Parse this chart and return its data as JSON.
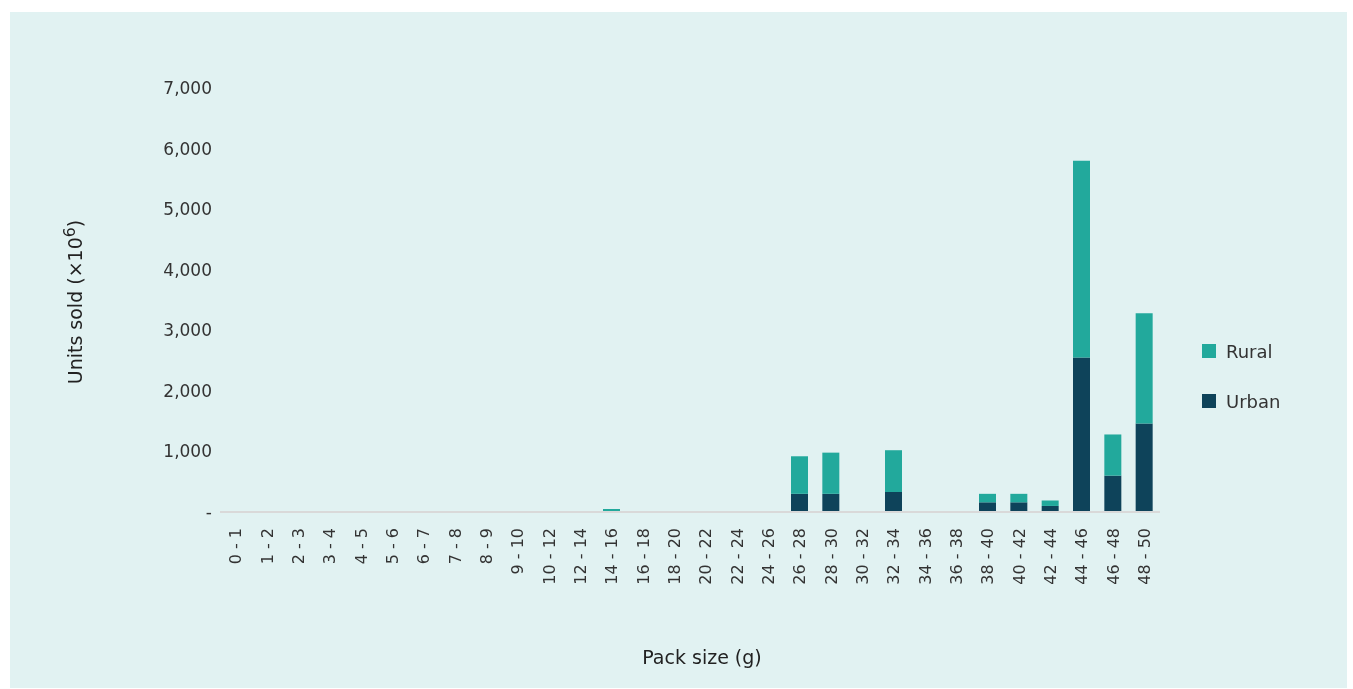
{
  "chart_data": {
    "type": "bar",
    "stacked": true,
    "xlabel": "Pack size (g)",
    "ylabel": "Units sold (×10$^{6}$)",
    "categories": [
      "0 - 1",
      "1 - 2",
      "2 - 3",
      "3 - 4",
      "4 - 5",
      "5 - 6",
      "6 - 7",
      "7 - 8",
      "8 - 9",
      "9 - 10",
      "10 - 12",
      "12 - 14",
      "14 - 16",
      "16 - 18",
      "18 - 20",
      "20 - 22",
      "22 - 24",
      "24 - 26",
      "26 - 28",
      "28 - 30",
      "30 - 32",
      "32 - 34",
      "34 - 36",
      "36 - 38",
      "38 - 40",
      "40 - 42",
      "42 - 44",
      "44 - 46",
      "46 - 48",
      "48 - 50"
    ],
    "series": [
      {
        "name": "Urban",
        "color": "#0e435a",
        "values": [
          0,
          0,
          0,
          0,
          0,
          0,
          0,
          0,
          0,
          0,
          0,
          0,
          null,
          0,
          0,
          0,
          0,
          0,
          300,
          300,
          0,
          330,
          0,
          0,
          160,
          160,
          100,
          2550,
          600,
          1460
        ]
      },
      {
        "name": "Rural",
        "color": "#22a99c",
        "values": [
          0,
          0,
          0,
          0,
          0,
          0,
          0,
          0,
          0,
          0,
          0,
          0,
          50,
          0,
          0,
          0,
          0,
          0,
          620,
          680,
          0,
          690,
          null,
          0,
          140,
          140,
          90,
          3250,
          680,
          1820
        ]
      }
    ],
    "ylim": [
      0,
      7000
    ],
    "yticks": [
      {
        "value": 0,
        "label": "-"
      },
      {
        "value": 1000,
        "label": "1,000"
      },
      {
        "value": 2000,
        "label": "2,000"
      },
      {
        "value": 3000,
        "label": "3,000"
      },
      {
        "value": 4000,
        "label": "4,000"
      },
      {
        "value": 5000,
        "label": "5,000"
      },
      {
        "value": 6000,
        "label": "6,000"
      },
      {
        "value": 7000,
        "label": "7,000"
      }
    ],
    "legend": "right"
  }
}
